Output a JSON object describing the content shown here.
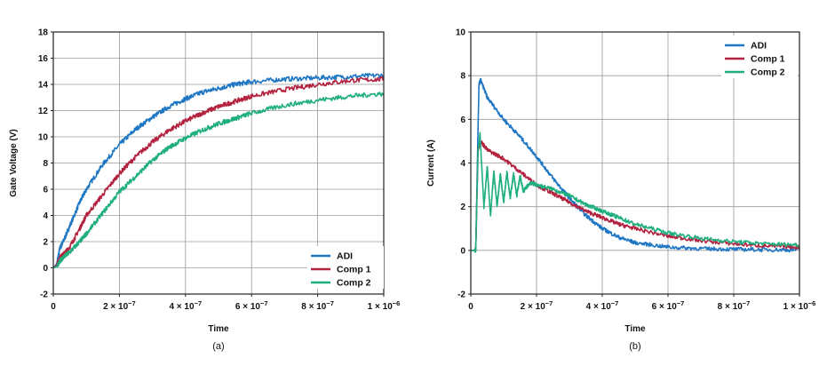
{
  "chart_data": [
    {
      "type": "line",
      "caption": "(a)",
      "xlabel": "Time",
      "ylabel": "Gate Voltage (V)",
      "xlim": [
        0,
        1e-06
      ],
      "ylim": [
        -2,
        18
      ],
      "xticks": [
        0,
        2e-07,
        4e-07,
        6e-07,
        8e-07,
        1e-06
      ],
      "xtick_base_labels": [
        "0",
        "2 × 10",
        "4 × 10",
        "6 × 10",
        "8 × 10",
        "1 × 10"
      ],
      "xtick_exponents": [
        "",
        "−7",
        "−7",
        "−7",
        "−7",
        "−6"
      ],
      "yticks": [
        -2,
        0,
        2,
        4,
        6,
        8,
        10,
        12,
        14,
        16,
        18
      ],
      "ytick_labels": [
        "-2",
        "0",
        "2",
        "4",
        "6",
        "8",
        "10",
        "12",
        "14",
        "16",
        "18"
      ],
      "grid": true,
      "legend_position": "bottom-right",
      "series": [
        {
          "name": "ADI",
          "color": "#1f77c4",
          "x": [
            0,
            1e-08,
            2e-08,
            3e-08,
            5e-08,
            8e-08,
            1e-07,
            1.5e-07,
            2e-07,
            2.5e-07,
            3e-07,
            3.5e-07,
            4e-07,
            4.5e-07,
            5e-07,
            5.5e-07,
            6e-07,
            7e-07,
            8e-07,
            9e-07,
            1e-06
          ],
          "y": [
            0,
            0.3,
            1.5,
            2.0,
            3.2,
            5.0,
            6.0,
            7.9,
            9.4,
            10.6,
            11.5,
            12.3,
            12.9,
            13.4,
            13.7,
            14.0,
            14.2,
            14.4,
            14.5,
            14.6,
            14.7
          ]
        },
        {
          "name": "Comp 1",
          "color": "#b3223f",
          "x": [
            0,
            1e-08,
            2e-08,
            3e-08,
            5e-08,
            8e-08,
            1e-07,
            1.5e-07,
            2e-07,
            2.5e-07,
            3e-07,
            3.5e-07,
            4e-07,
            4.5e-07,
            5e-07,
            5.5e-07,
            6e-07,
            7e-07,
            8e-07,
            9e-07,
            1e-06
          ],
          "y": [
            0,
            0.2,
            0.8,
            1.0,
            1.6,
            3.0,
            4.0,
            5.6,
            7.2,
            8.5,
            9.6,
            10.5,
            11.2,
            11.8,
            12.3,
            12.7,
            13.1,
            13.6,
            14.0,
            14.3,
            14.4
          ]
        },
        {
          "name": "Comp 2",
          "color": "#1fae7e",
          "x": [
            0,
            1e-08,
            2e-08,
            3e-08,
            5e-08,
            8e-08,
            1e-07,
            1.5e-07,
            2e-07,
            2.5e-07,
            3e-07,
            3.5e-07,
            4e-07,
            4.5e-07,
            5e-07,
            5.5e-07,
            6e-07,
            7e-07,
            8e-07,
            9e-07,
            1e-06
          ],
          "y": [
            0,
            0.1,
            0.5,
            0.8,
            1.2,
            2.0,
            2.6,
            4.2,
            5.8,
            7.0,
            8.2,
            9.2,
            9.9,
            10.5,
            11.0,
            11.4,
            11.8,
            12.4,
            12.8,
            13.1,
            13.3
          ]
        }
      ]
    },
    {
      "type": "line",
      "caption": "(b)",
      "xlabel": "Time",
      "ylabel": "Current (A)",
      "xlim": [
        0,
        1e-06
      ],
      "ylim": [
        -2,
        10
      ],
      "xticks": [
        0,
        2e-07,
        4e-07,
        6e-07,
        8e-07,
        1e-06
      ],
      "xtick_base_labels": [
        "0",
        "2 × 10",
        "4 × 10",
        "6 × 10",
        "8 × 10",
        "1 × 10"
      ],
      "xtick_exponents": [
        "",
        "−7",
        "−7",
        "−7",
        "−7",
        "−6"
      ],
      "yticks": [
        -2,
        0,
        2,
        4,
        6,
        8,
        10
      ],
      "ytick_labels": [
        "-2",
        "0",
        "2",
        "4",
        "6",
        "8",
        "10"
      ],
      "grid": true,
      "legend_position": "top-right",
      "series": [
        {
          "name": "ADI",
          "color": "#1f77c4",
          "x": [
            0,
            1.5e-08,
            2.2e-08,
            2.5e-08,
            3e-08,
            5e-08,
            1e-07,
            1.5e-07,
            2e-07,
            2.5e-07,
            3e-07,
            3.5e-07,
            4e-07,
            4.5e-07,
            5e-07,
            6e-07,
            7e-07,
            8e-07,
            9e-07,
            1e-06
          ],
          "y": [
            0,
            0,
            5.5,
            7.6,
            7.8,
            7.0,
            6.0,
            5.2,
            4.3,
            3.3,
            2.4,
            1.6,
            1.0,
            0.6,
            0.35,
            0.15,
            0.08,
            0.05,
            0.03,
            0.02
          ]
        },
        {
          "name": "Comp 1",
          "color": "#b3223f",
          "x": [
            0,
            1.5e-08,
            2.2e-08,
            3e-08,
            5e-08,
            1e-07,
            1.5e-07,
            2e-07,
            2.5e-07,
            3e-07,
            3.5e-07,
            4e-07,
            4.5e-07,
            5e-07,
            6e-07,
            7e-07,
            8e-07,
            9e-07,
            1e-06
          ],
          "y": [
            0,
            0,
            4.6,
            5.0,
            4.6,
            4.2,
            3.6,
            3.0,
            2.6,
            2.2,
            1.8,
            1.5,
            1.2,
            1.0,
            0.65,
            0.45,
            0.3,
            0.2,
            0.15
          ]
        },
        {
          "name": "Comp 2",
          "color": "#1fae7e",
          "x": [
            0,
            1.5e-08,
            2.2e-08,
            2.8e-08,
            4e-08,
            5e-08,
            6e-08,
            7e-08,
            8e-08,
            9e-08,
            1e-07,
            1.1e-07,
            1.2e-07,
            1.3e-07,
            1.4e-07,
            1.5e-07,
            1.6e-07,
            1.8e-07,
            2e-07,
            2.5e-07,
            3e-07,
            3.5e-07,
            4e-07,
            4.5e-07,
            5e-07,
            6e-07,
            7e-07,
            8e-07,
            9e-07,
            1e-06
          ],
          "y": [
            0,
            0,
            4.5,
            5.3,
            2.0,
            3.8,
            1.6,
            3.6,
            2.0,
            3.5,
            2.2,
            3.6,
            2.4,
            3.5,
            2.5,
            3.4,
            2.7,
            3.1,
            3.0,
            2.8,
            2.5,
            2.1,
            1.8,
            1.5,
            1.2,
            0.8,
            0.55,
            0.4,
            0.3,
            0.25
          ]
        }
      ]
    }
  ]
}
